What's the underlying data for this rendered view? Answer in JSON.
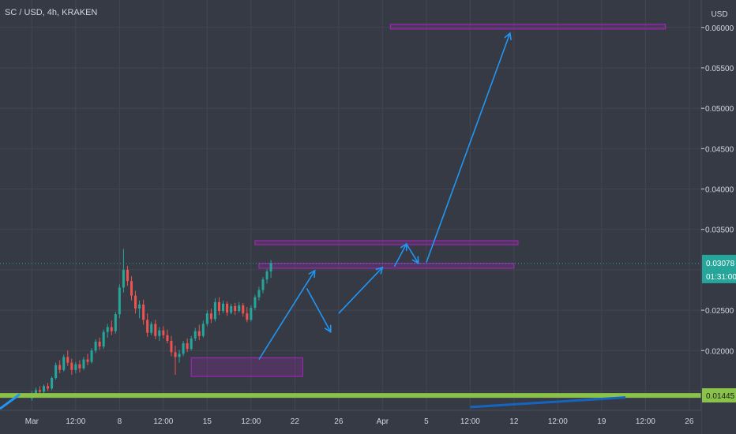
{
  "header": {
    "symbol_line": "SC / USD, 4h, KRAKEN"
  },
  "colors": {
    "background": "#363a45",
    "grid": "#434651",
    "text": "#d1d4dc",
    "up": "#26a69a",
    "down": "#ef5350",
    "annotation_blue": "#2196f3",
    "zone_purple": "#9c27b0",
    "support_green": "#8bc34a",
    "price_tag": "#26a69a"
  },
  "chart_data": {
    "type": "candlestick",
    "title": "SC / USD, 4h, KRAKEN",
    "y_axis": {
      "unit_label": "USD",
      "ylim": [
        0.0126,
        0.0634
      ],
      "ticks": [
        "0.06000",
        "0.05500",
        "0.05000",
        "0.04500",
        "0.04000",
        "0.03500",
        "0.02500",
        "0.02000"
      ],
      "tick_values": [
        0.06,
        0.055,
        0.05,
        0.045,
        0.04,
        0.035,
        0.025,
        0.02
      ]
    },
    "x_axis": {
      "ticks": [
        "Mar",
        "12:00",
        "8",
        "12:00",
        "15",
        "12:00",
        "22",
        "26",
        "Apr",
        "5",
        "12:00",
        "12",
        "12:00",
        "19",
        "12:00",
        "26"
      ],
      "tick_index": [
        0,
        11,
        22,
        33,
        44,
        55,
        66,
        77,
        88,
        99,
        110,
        121,
        132,
        143,
        154,
        165
      ],
      "index_range": [
        -8,
        168
      ]
    },
    "last_price": {
      "value": 0.03078,
      "label": "0.03078",
      "countdown": "01:31:00"
    },
    "support_level": {
      "value": 0.01445,
      "label": "0.01445"
    },
    "candles_ohlc": [
      [
        0.0141,
        0.015,
        0.0138,
        0.0147
      ],
      [
        0.0147,
        0.0154,
        0.0143,
        0.0151
      ],
      [
        0.0151,
        0.0156,
        0.0146,
        0.0149
      ],
      [
        0.0149,
        0.0158,
        0.0147,
        0.0156
      ],
      [
        0.0156,
        0.016,
        0.015,
        0.0153
      ],
      [
        0.0153,
        0.0168,
        0.0151,
        0.0166
      ],
      [
        0.0166,
        0.0185,
        0.0164,
        0.0182
      ],
      [
        0.0182,
        0.0188,
        0.0172,
        0.0176
      ],
      [
        0.0176,
        0.0195,
        0.0174,
        0.0192
      ],
      [
        0.0192,
        0.02,
        0.0181,
        0.0185
      ],
      [
        0.0185,
        0.019,
        0.017,
        0.0176
      ],
      [
        0.0176,
        0.0186,
        0.0172,
        0.0183
      ],
      [
        0.0183,
        0.0188,
        0.0173,
        0.0178
      ],
      [
        0.0178,
        0.0192,
        0.0176,
        0.0189
      ],
      [
        0.0189,
        0.0196,
        0.0182,
        0.0186
      ],
      [
        0.0186,
        0.0203,
        0.0184,
        0.02
      ],
      [
        0.02,
        0.0214,
        0.0197,
        0.0211
      ],
      [
        0.0211,
        0.0216,
        0.0201,
        0.0205
      ],
      [
        0.0205,
        0.0226,
        0.0202,
        0.0223
      ],
      [
        0.0223,
        0.0233,
        0.0216,
        0.0229
      ],
      [
        0.0229,
        0.0237,
        0.0219,
        0.0224
      ],
      [
        0.0224,
        0.0248,
        0.0221,
        0.0245
      ],
      [
        0.0245,
        0.0282,
        0.024,
        0.0278
      ],
      [
        0.0278,
        0.0326,
        0.0272,
        0.03
      ],
      [
        0.03,
        0.0305,
        0.028,
        0.0286
      ],
      [
        0.0286,
        0.0292,
        0.0262,
        0.0268
      ],
      [
        0.0268,
        0.0274,
        0.0246,
        0.0252
      ],
      [
        0.0252,
        0.0262,
        0.024,
        0.0257
      ],
      [
        0.0257,
        0.0263,
        0.0232,
        0.0238
      ],
      [
        0.0238,
        0.0246,
        0.0217,
        0.0222
      ],
      [
        0.0222,
        0.0236,
        0.0219,
        0.0233
      ],
      [
        0.0233,
        0.0238,
        0.0214,
        0.0218
      ],
      [
        0.0218,
        0.0229,
        0.0212,
        0.0225
      ],
      [
        0.0225,
        0.023,
        0.0215,
        0.0219
      ],
      [
        0.0219,
        0.0226,
        0.0209,
        0.0212
      ],
      [
        0.0212,
        0.0218,
        0.0193,
        0.0198
      ],
      [
        0.0198,
        0.0206,
        0.017,
        0.0192
      ],
      [
        0.0192,
        0.0201,
        0.0185,
        0.0196
      ],
      [
        0.0196,
        0.0212,
        0.0193,
        0.0209
      ],
      [
        0.0209,
        0.0215,
        0.0198,
        0.0202
      ],
      [
        0.0202,
        0.0218,
        0.02,
        0.0215
      ],
      [
        0.0215,
        0.0228,
        0.0212,
        0.0224
      ],
      [
        0.0224,
        0.0232,
        0.0213,
        0.0218
      ],
      [
        0.0218,
        0.0237,
        0.0216,
        0.0233
      ],
      [
        0.0233,
        0.025,
        0.023,
        0.0246
      ],
      [
        0.0246,
        0.0252,
        0.0234,
        0.0239
      ],
      [
        0.0239,
        0.0265,
        0.0236,
        0.026
      ],
      [
        0.026,
        0.0266,
        0.0244,
        0.0249
      ],
      [
        0.0249,
        0.0262,
        0.0246,
        0.0258
      ],
      [
        0.0258,
        0.0261,
        0.0243,
        0.0247
      ],
      [
        0.0247,
        0.0258,
        0.0245,
        0.0255
      ],
      [
        0.0255,
        0.0259,
        0.0244,
        0.0249
      ],
      [
        0.0249,
        0.026,
        0.0247,
        0.0256
      ],
      [
        0.0256,
        0.0259,
        0.0242,
        0.0246
      ],
      [
        0.0246,
        0.0254,
        0.0235,
        0.0238
      ],
      [
        0.0238,
        0.0256,
        0.0236,
        0.0253
      ],
      [
        0.0253,
        0.0269,
        0.025,
        0.0266
      ],
      [
        0.0266,
        0.0279,
        0.0262,
        0.0275
      ],
      [
        0.0275,
        0.0291,
        0.0271,
        0.0288
      ],
      [
        0.0288,
        0.0301,
        0.0283,
        0.0298
      ],
      [
        0.0298,
        0.0312,
        0.029,
        0.0308
      ]
    ],
    "candles_first_index": 39,
    "drawings": {
      "rectangles": [
        {
          "name": "target-zone",
          "i": [
            90,
            159
          ],
          "y": [
            0.0604,
            0.0598
          ]
        },
        {
          "name": "resistance-zone-upper",
          "i": [
            56,
            122
          ],
          "y": [
            0.0336,
            0.0331
          ]
        },
        {
          "name": "resistance-zone-lower",
          "i": [
            57,
            121
          ],
          "y": [
            0.0308,
            0.0302
          ]
        },
        {
          "name": "accumulation-zone",
          "i": [
            40,
            68
          ],
          "y": [
            0.0191,
            0.0168
          ]
        }
      ],
      "arrows": [
        {
          "pts": [
            [
              57,
              0.0189
            ],
            [
              71,
              0.0299
            ]
          ]
        },
        {
          "pts": [
            [
              69,
              0.0277
            ],
            [
              75,
              0.0223
            ]
          ]
        },
        {
          "pts": [
            [
              77,
              0.0246
            ],
            [
              88,
              0.0303
            ]
          ]
        },
        {
          "pts": [
            [
              91,
              0.0304
            ],
            [
              94,
              0.0332
            ]
          ]
        },
        {
          "pts": [
            [
              94,
              0.0332
            ],
            [
              97,
              0.0308
            ]
          ]
        },
        {
          "pts": [
            [
              99,
              0.0309
            ],
            [
              120,
              0.0593
            ]
          ]
        }
      ],
      "trend_line": {
        "pts": [
          [
            -8,
            0.0128
          ],
          [
            -5,
            0.0146
          ]
        ]
      },
      "lower_trend_line": {
        "pts": [
          [
            110,
            0.013
          ],
          [
            149,
            0.0142
          ]
        ]
      }
    }
  }
}
